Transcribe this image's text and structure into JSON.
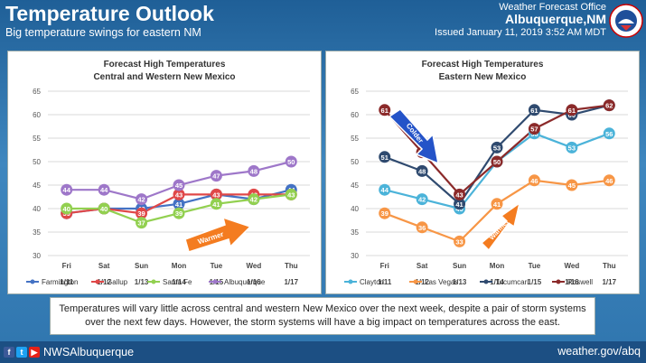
{
  "header": {
    "title": "Temperature Outlook",
    "subtitle": "Big temperature swings for eastern NM",
    "office": "Weather Forecast Office",
    "city": "Albuquerque,NM",
    "issued": "Issued January 11, 2019 3:52 AM MDT"
  },
  "logo": {
    "icon": "noaa-nws-logo",
    "text": "WEATHER SERVICE"
  },
  "chart_data": [
    {
      "type": "line",
      "title": "Forecast High Temperatures",
      "subtitle": "Central and Western New Mexico",
      "days": [
        "Fri",
        "Sat",
        "Sun",
        "Mon",
        "Tue",
        "Wed",
        "Thu"
      ],
      "dates": [
        "1/11",
        "1/12",
        "1/13",
        "1/14",
        "1/15",
        "1/16",
        "1/17"
      ],
      "ylim": [
        30,
        65
      ],
      "yticks": [
        30,
        35,
        40,
        45,
        50,
        55,
        60,
        65
      ],
      "grid": true,
      "legend": "bottom",
      "series": [
        {
          "name": "Farmington",
          "color": "#4472c4",
          "values": [
            39,
            40,
            40,
            41,
            43,
            42,
            44
          ]
        },
        {
          "name": "Gallup",
          "color": "#e04848",
          "values": [
            39,
            40,
            39,
            43,
            43,
            43,
            43
          ]
        },
        {
          "name": "Santa Fe",
          "color": "#92d050",
          "values": [
            40,
            40,
            37,
            39,
            41,
            42,
            43
          ]
        },
        {
          "name": "Albuquerque",
          "color": "#9e77c9",
          "values": [
            44,
            44,
            42,
            45,
            47,
            48,
            50
          ]
        }
      ],
      "annotation": {
        "text": "Warmer",
        "icon": "warmer-arrow",
        "color": "#f47c20"
      }
    },
    {
      "type": "line",
      "title": "Forecast High Temperatures",
      "subtitle": "Eastern New Mexico",
      "days": [
        "Fri",
        "Sat",
        "Sun",
        "Mon",
        "Tue",
        "Wed",
        "Thu"
      ],
      "dates": [
        "1/11",
        "1/12",
        "1/13",
        "1/14",
        "1/15",
        "1/16",
        "1/17"
      ],
      "ylim": [
        30,
        65
      ],
      "yticks": [
        30,
        35,
        40,
        45,
        50,
        55,
        60,
        65
      ],
      "grid": true,
      "legend": "bottom",
      "series": [
        {
          "name": "Clayton",
          "color": "#4bb3d9",
          "values": [
            44,
            42,
            40,
            50,
            56,
            53,
            56
          ]
        },
        {
          "name": "Las Vegas",
          "color": "#f79646",
          "values": [
            39,
            36,
            33,
            41,
            46,
            45,
            46
          ]
        },
        {
          "name": "Tucumcari",
          "color": "#2f4a6f",
          "values": [
            51,
            48,
            41,
            53,
            61,
            60,
            62
          ]
        },
        {
          "name": "Roswell",
          "color": "#8b2a2a",
          "values": [
            61,
            52,
            43,
            50,
            57,
            61,
            62
          ]
        }
      ],
      "annotations": [
        {
          "text": "Colder",
          "icon": "colder-arrow",
          "color": "#2453c8"
        },
        {
          "text": "Warmer",
          "icon": "warmer-arrow",
          "color": "#f47c20"
        }
      ]
    }
  ],
  "summary": "Temperatures will vary little across central and western New Mexico over the next week, despite a pair of storm systems over the next few days. However, the storm systems will have a big impact on temperatures across the east.",
  "footer": {
    "icons": [
      "facebook-icon",
      "twitter-icon",
      "youtube-icon"
    ],
    "handle": "NWSAlbuquerque",
    "website": "weather.gov/abq"
  }
}
